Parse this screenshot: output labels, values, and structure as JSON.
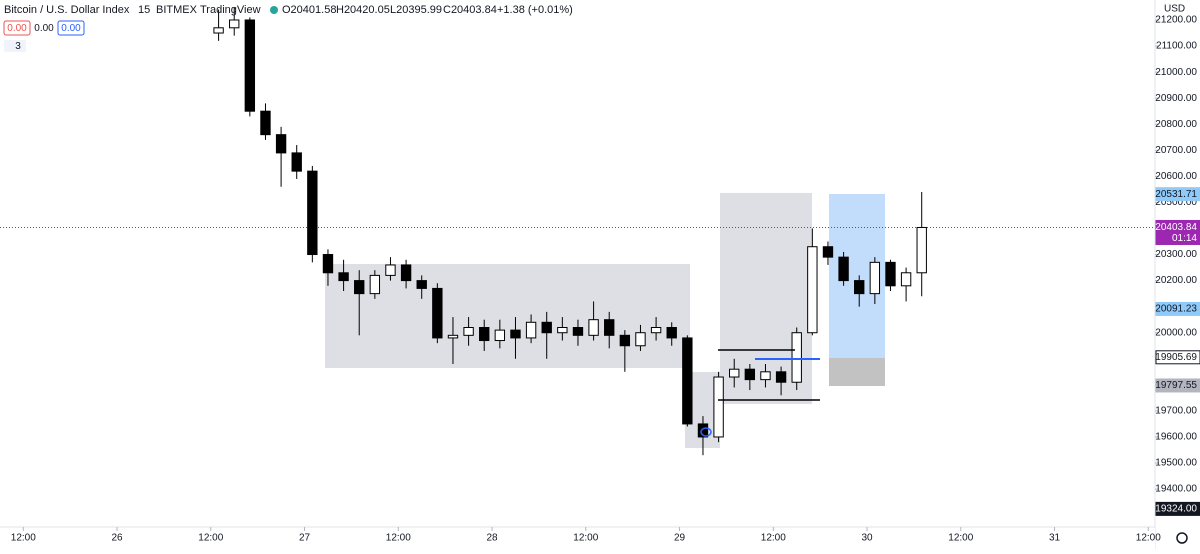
{
  "header": {
    "symbol": "Bitcoin / U.S. Dollar Index",
    "interval": "15",
    "exchange": "BITMEX",
    "source": "TradingView",
    "ohlc": [
      "O20401.58",
      "H20420.05",
      "L20395.99",
      "C20403.84"
    ],
    "change": "+1.38 (+0.01%)",
    "buttons": [
      "0.00",
      "0.00",
      "0.00"
    ],
    "indicator_count": "3",
    "currency": "USD"
  },
  "chart_data": {
    "type": "candlestick",
    "xlim": [
      -14.98,
      132.86
    ],
    "ylim": [
      19254.5,
      21276.7
    ],
    "xticks": [
      {
        "value": -12,
        "label": "12:00"
      },
      {
        "value": 0,
        "label": "26"
      },
      {
        "value": 12,
        "label": "12:00"
      },
      {
        "value": 24,
        "label": "27"
      },
      {
        "value": 36,
        "label": "12:00"
      },
      {
        "value": 48,
        "label": "28"
      },
      {
        "value": 60,
        "label": "12:00"
      },
      {
        "value": 72,
        "label": "29"
      },
      {
        "value": 84,
        "label": "12:00"
      },
      {
        "value": 96,
        "label": "30"
      },
      {
        "value": 108,
        "label": "12:00"
      },
      {
        "value": 120,
        "label": "31"
      },
      {
        "value": 132,
        "label": "12:00"
      }
    ],
    "yticks": [
      {
        "value": 19400,
        "label": "19400.00"
      },
      {
        "value": 19500,
        "label": "19500.00"
      },
      {
        "value": 19600,
        "label": "19600.00"
      },
      {
        "value": 19700,
        "label": "19700.00"
      },
      {
        "value": 19800,
        "label": "19800.00"
      },
      {
        "value": 19900,
        "label": "19900.00"
      },
      {
        "value": 20000,
        "label": "20000.00"
      },
      {
        "value": 20100,
        "label": "20100.00"
      },
      {
        "value": 20200,
        "label": "20200.00"
      },
      {
        "value": 20300,
        "label": "20300.00"
      },
      {
        "value": 20400,
        "label": "20400.00"
      },
      {
        "value": 20500,
        "label": "20500.00"
      },
      {
        "value": 20600,
        "label": "20600.00"
      },
      {
        "value": 20700,
        "label": "20700.00"
      },
      {
        "value": 20800,
        "label": "20800.00"
      },
      {
        "value": 20900,
        "label": "20900.00"
      },
      {
        "value": 21000,
        "label": "21000.00"
      },
      {
        "value": 21100,
        "label": "21100.00"
      },
      {
        "value": 21200,
        "label": "21200.00"
      }
    ],
    "grid": false,
    "up_color": "#ffffff",
    "down_color": "#000000",
    "wick_color": "#000000",
    "series": [
      {
        "x": [
          13,
          15,
          17,
          19,
          21,
          23,
          25,
          27,
          29,
          31,
          33,
          35,
          37,
          39,
          41,
          43,
          45,
          47,
          49,
          51,
          53,
          55,
          57,
          59,
          61,
          63,
          65,
          67,
          69,
          71,
          73,
          75,
          77,
          79,
          81,
          83,
          85,
          87,
          89,
          91,
          93,
          95,
          97,
          99,
          101,
          103
        ],
        "open": [
          21150,
          21170,
          21200,
          20850,
          20760,
          20690,
          20620,
          20300,
          20230,
          20200,
          20150,
          20220,
          20260,
          20200,
          20170,
          19980,
          19990,
          20020,
          19970,
          20010,
          19980,
          20040,
          20000,
          20020,
          19990,
          20050,
          19990,
          19950,
          20000,
          20020,
          19980,
          19650,
          19600,
          19830,
          19860,
          19820,
          19850,
          19810,
          20000,
          20330,
          20290,
          20200,
          20150,
          20270,
          20180,
          20230
        ],
        "high": [
          21240,
          21250,
          21210,
          20880,
          20790,
          20720,
          20640,
          20320,
          20280,
          20240,
          20240,
          20290,
          20280,
          20220,
          20190,
          20060,
          20060,
          20050,
          20050,
          20060,
          20070,
          20080,
          20060,
          20050,
          20120,
          20080,
          20010,
          20030,
          20060,
          20040,
          19990,
          19680,
          19850,
          19900,
          19880,
          19880,
          19870,
          20020,
          20400,
          20350,
          20310,
          20220,
          20290,
          20280,
          20250,
          20540
        ],
        "low": [
          21120,
          21140,
          20830,
          20740,
          20560,
          20590,
          20270,
          20180,
          20160,
          19990,
          20130,
          20200,
          20170,
          20130,
          19960,
          19880,
          19950,
          19930,
          19940,
          19900,
          19960,
          19900,
          19970,
          19950,
          19970,
          19940,
          19850,
          19930,
          19970,
          19950,
          19640,
          19530,
          19580,
          19790,
          19780,
          19790,
          19760,
          19780,
          19990,
          20260,
          20180,
          20100,
          20110,
          20160,
          20120,
          20140
        ],
        "close": [
          21170,
          21200,
          20850,
          20760,
          20690,
          20620,
          20300,
          20230,
          20200,
          20150,
          20220,
          20260,
          20200,
          20170,
          19980,
          19990,
          20020,
          19970,
          20010,
          19980,
          20040,
          20000,
          20020,
          19990,
          20050,
          19990,
          19950,
          20000,
          20020,
          19980,
          19650,
          19600,
          19830,
          19860,
          19820,
          19850,
          19810,
          20000,
          20330,
          20290,
          20200,
          20150,
          20270,
          20180,
          20230,
          20403.84
        ]
      }
    ],
    "current_price": 20403.84,
    "current_price_color": "#9c27b0",
    "price_markers": [
      {
        "value": 20531.71,
        "label": "20531.71",
        "color": "#90caf9",
        "text_color": "#131722"
      },
      {
        "value": 20403.84,
        "label": "20403.84",
        "sublabel": "01:14",
        "color": "#9c27b0",
        "text_color": "#ffffff"
      },
      {
        "value": 20091.23,
        "label": "20091.23",
        "color": "#90caf9",
        "text_color": "#131722"
      },
      {
        "value": 19905.69,
        "label": "19905.69",
        "color": "#ffffff",
        "text_color": "#131722"
      },
      {
        "value": 19797.55,
        "label": "19797.55",
        "color": "#b2b5be",
        "text_color": "#131722"
      },
      {
        "value": 19324,
        "label": "19324.00",
        "color": "#131722",
        "text_color": "#ffffff"
      }
    ]
  }
}
